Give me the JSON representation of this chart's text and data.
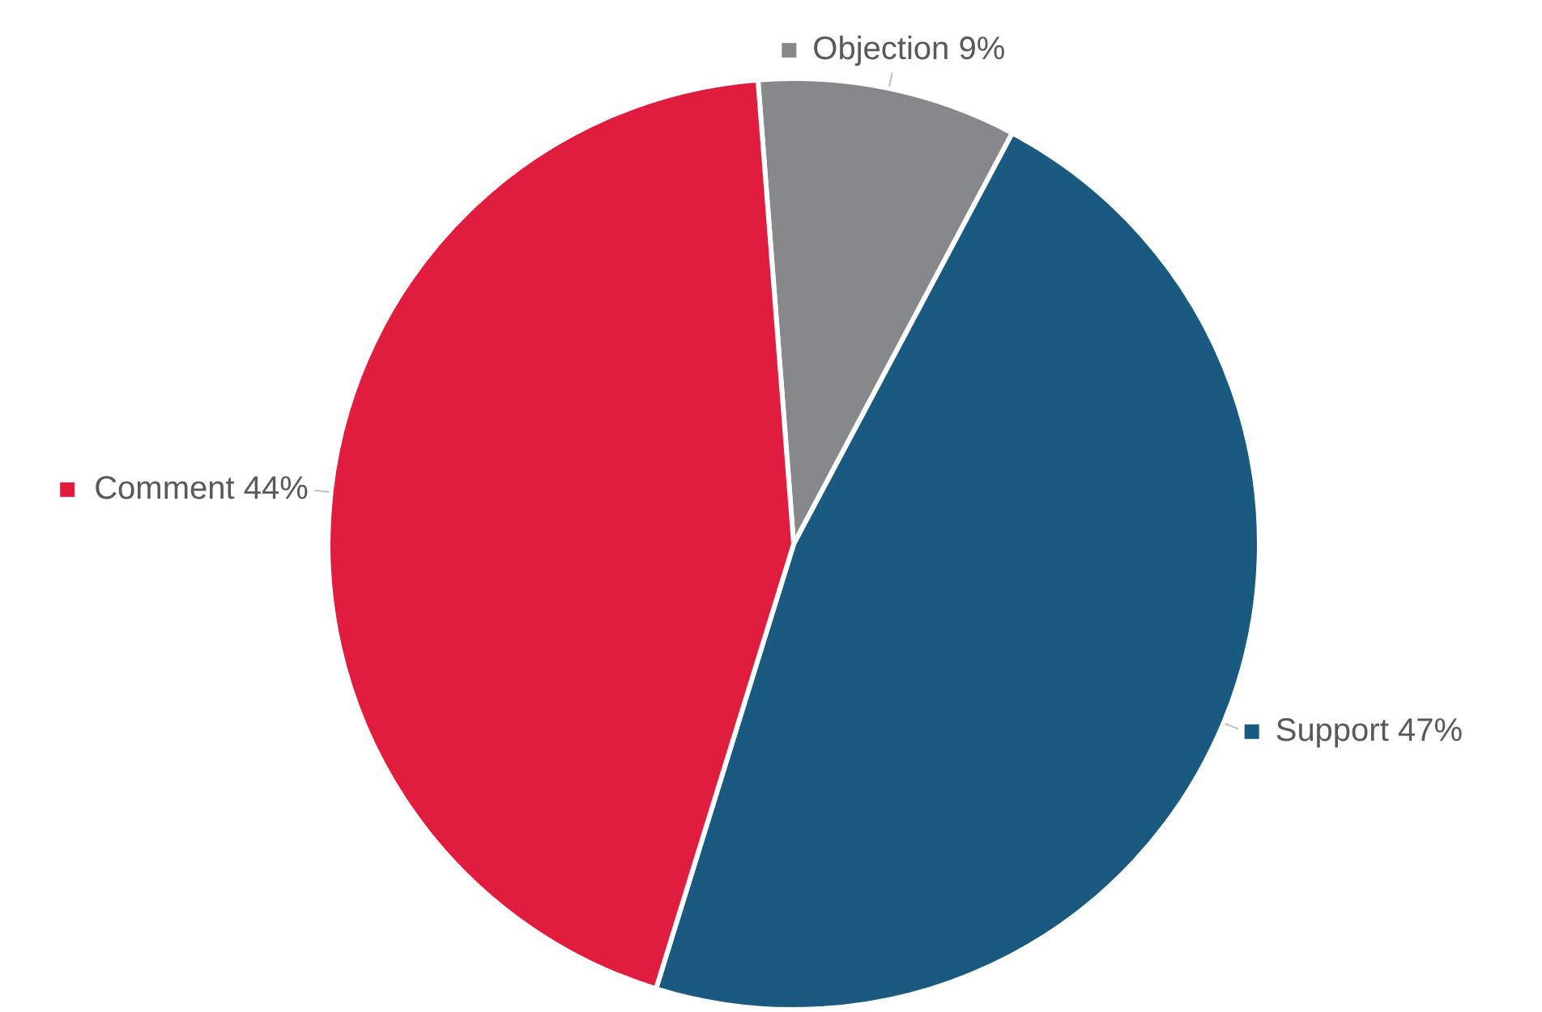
{
  "chart_data": {
    "type": "pie",
    "categories": [
      "Objection",
      "Support",
      "Comment"
    ],
    "values": [
      9,
      47,
      44
    ],
    "value_labels": [
      "9%",
      "47%",
      "44%"
    ],
    "colors": [
      "#87888a",
      "#1a5a80",
      "#e01c3f"
    ],
    "legend": "right"
  }
}
